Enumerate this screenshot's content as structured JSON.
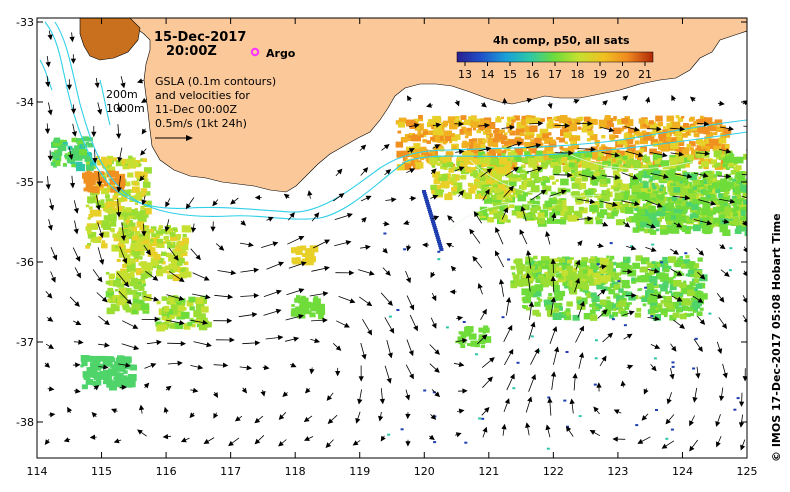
{
  "date": "15-Dec-2017",
  "time": "20:00Z",
  "argo_label": "Argo",
  "colorbar": {
    "title": "4h comp, p50, all sats",
    "ticks": [
      "13",
      "14",
      "15",
      "16",
      "17",
      "18",
      "19",
      "20",
      "21"
    ]
  },
  "info_lines": [
    "GSLA (0.1m contours)",
    "and velocities for",
    "11-Dec 00:00Z",
    "0.5m/s (1kt 24h)"
  ],
  "isobaths": [
    "200m",
    "1000m"
  ],
  "x_ticks": [
    "114",
    "115",
    "116",
    "117",
    "118",
    "119",
    "120",
    "121",
    "122",
    "123",
    "124",
    "125"
  ],
  "y_ticks": [
    "-33",
    "-34",
    "-35",
    "-36",
    "-37",
    "-38"
  ],
  "credit": "© IMOS 17-Dec-2017 05:08 Hobart Time",
  "colors": {
    "land": "#fbc89a",
    "isobath": "#30d0e8",
    "argo": "#ff30ff",
    "sst_scale": [
      "#2a1f8f",
      "#1f4fc8",
      "#1aa0d8",
      "#2dc7a8",
      "#6fdc3a",
      "#c5e030",
      "#f0c020",
      "#f08a20",
      "#d03c10",
      "#7a1a08"
    ]
  }
}
